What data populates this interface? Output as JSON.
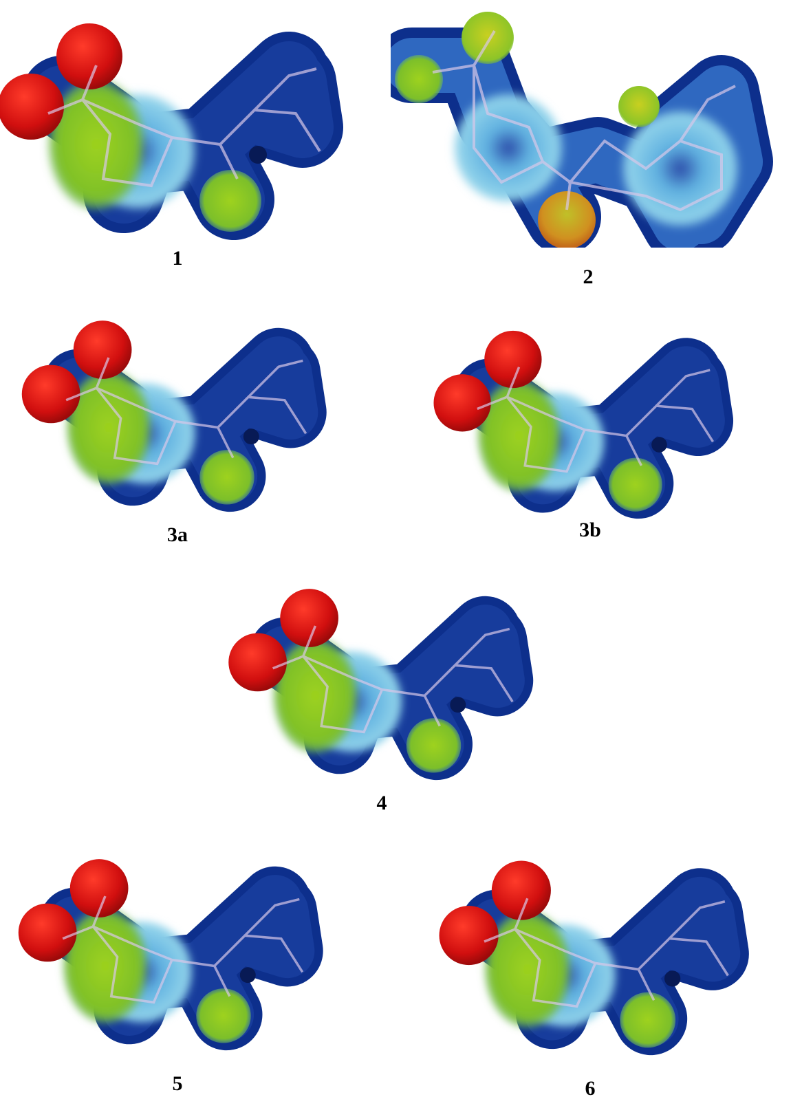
{
  "figure": {
    "panels": [
      {
        "label": "1"
      },
      {
        "label": "2"
      },
      {
        "label": "3a"
      },
      {
        "label": "3b"
      },
      {
        "label": "4"
      },
      {
        "label": "5"
      },
      {
        "label": "6"
      }
    ]
  }
}
